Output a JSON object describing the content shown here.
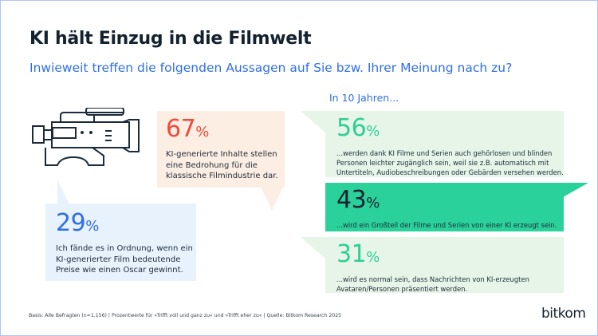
{
  "title": "KI hält Einzug in die Filmwelt",
  "subtitle": "Inwieweit treffen die folgenden Aussagen auf Sie bzw. Ihrer Meinung nach zu?",
  "icon": "video-camera-icon",
  "left_stats": [
    {
      "value": "67",
      "unit": "%",
      "text": "KI-generierte Inhalte stellen eine Bedrohung für die klassische Filmindustrie dar.",
      "color": "#f04a3a",
      "bg": "#fdeee4"
    },
    {
      "value": "29",
      "unit": "%",
      "text": "Ich fände es in Ordnung, wenn ein KI-generierter Film bedeutende Preise wie einen Oscar gewinnt.",
      "color": "#2f6ee6",
      "bg": "#e8f2fd"
    }
  ],
  "future_heading": "In 10 Jahren...",
  "future_stats": [
    {
      "value": "56",
      "unit": "%",
      "text": "...werden dank KI Filme und Serien auch gehörlosen und blinden Personen leichter zugänglich sein, weil sie z.B. automatisch mit Untertiteln, Audiobeschreibungen oder Gebärden versehen werden.",
      "color": "#2ccf94",
      "bg": "#e6f5e8"
    },
    {
      "value": "43",
      "unit": "%",
      "text": "...wird ein Großteil der Filme und Serien von einer KI erzeugt sein.",
      "color": "#13222f",
      "bg": "#2ad19a"
    },
    {
      "value": "31",
      "unit": "%",
      "text": "...wird es normal sein, dass Nachrichten von KI-erzeugten Avataren/Personen präsentiert werden.",
      "color": "#2ccf94",
      "bg": "#e6f5e8"
    }
  ],
  "footer": "Basis: Alle Befragten (n=1.156) | Prozentwerte für »Trifft voll und ganz zu« und »Trifft eher zu« | Quelle: Bitkom Research 2025",
  "logo": "bitkom"
}
